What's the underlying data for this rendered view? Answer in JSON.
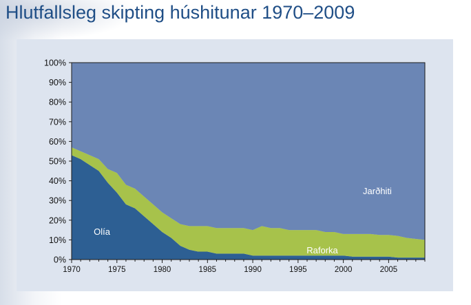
{
  "title": "Hlutfallsleg skipting húshitunar 1970–2009",
  "chart_data": {
    "type": "area",
    "stacked": true,
    "percent": true,
    "x": [
      1970,
      1971,
      1972,
      1973,
      1974,
      1975,
      1976,
      1977,
      1978,
      1979,
      1980,
      1981,
      1982,
      1983,
      1984,
      1985,
      1986,
      1987,
      1988,
      1989,
      1990,
      1991,
      1992,
      1993,
      1994,
      1995,
      1996,
      1997,
      1998,
      1999,
      2000,
      2001,
      2002,
      2003,
      2004,
      2005,
      2006,
      2007,
      2008,
      2009
    ],
    "series": [
      {
        "name": "Olía",
        "color": "#2d5f93",
        "values": [
          53,
          51,
          48,
          45,
          39,
          34,
          28,
          26,
          22,
          18,
          14,
          11,
          7,
          5,
          4,
          4,
          3,
          3,
          3,
          3,
          2,
          2,
          2,
          2,
          2,
          2,
          2,
          2,
          2,
          2,
          2,
          1.5,
          1.5,
          1.5,
          1.5,
          1.5,
          1,
          1,
          1,
          1
        ]
      },
      {
        "name": "Raforka",
        "color": "#a7c24b",
        "values": [
          4,
          4,
          5,
          6,
          7,
          10,
          10,
          10,
          10,
          10,
          10,
          10,
          11,
          12,
          13,
          13,
          13,
          13,
          13,
          13,
          13,
          15,
          14,
          14,
          13,
          13,
          13,
          13,
          12,
          12,
          11,
          11.5,
          11.5,
          11.5,
          11,
          11,
          11,
          10,
          9.5,
          9
        ]
      },
      {
        "name": "Jarðhiti",
        "color": "#6b86b5",
        "values": [
          43,
          45,
          47,
          49,
          54,
          56,
          62,
          64,
          68,
          72,
          76,
          79,
          82,
          83,
          83,
          83,
          84,
          84,
          84,
          84,
          85,
          83,
          84,
          84,
          85,
          85,
          85,
          85,
          86,
          86,
          87,
          87,
          87,
          87,
          87.5,
          87.5,
          88,
          89,
          89.5,
          90
        ]
      }
    ],
    "xticks": [
      "1970",
      "1975",
      "1980",
      "1985",
      "1990",
      "1995",
      "2000",
      "2005"
    ],
    "yticks": [
      "0%",
      "10%",
      "20%",
      "30%",
      "40%",
      "50%",
      "60%",
      "70%",
      "80%",
      "90%",
      "100%"
    ],
    "xlim": [
      1970,
      2009
    ],
    "ylim": [
      0,
      100
    ],
    "grid": false,
    "labels": {
      "olia": "Olía",
      "raforka": "Raforka",
      "jardhiti": "Jarðhiti"
    }
  }
}
